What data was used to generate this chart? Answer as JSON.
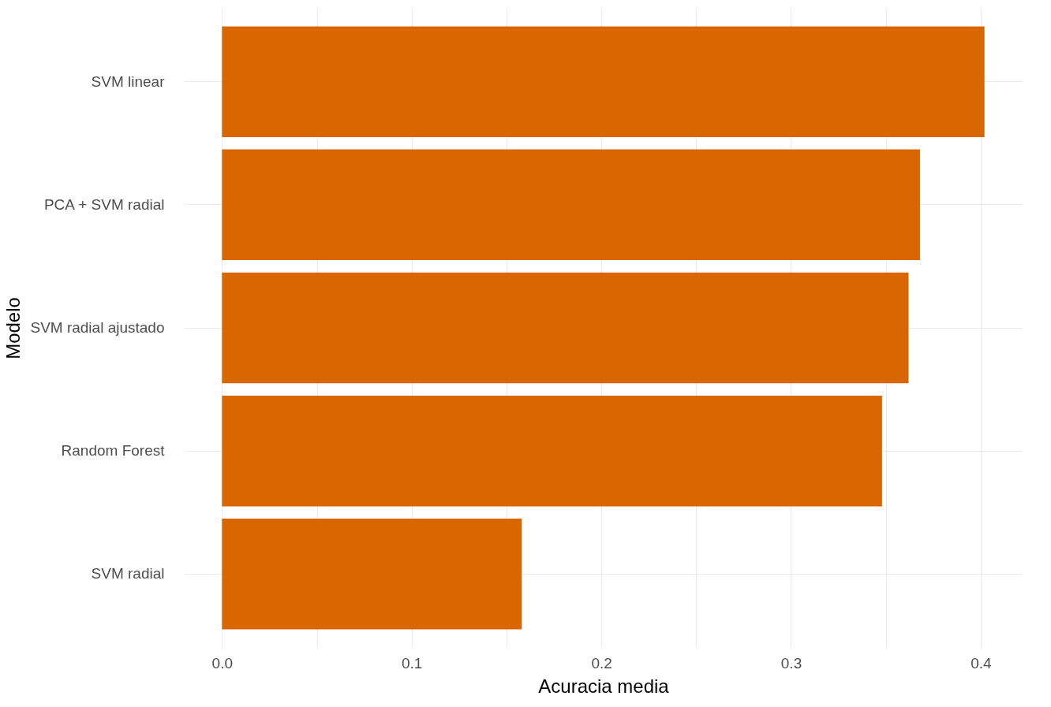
{
  "chart_data": {
    "type": "bar",
    "orientation": "horizontal",
    "xlabel": "Acuracia media",
    "ylabel": "Modelo",
    "categories": [
      "SVM linear",
      "PCA + SVM radial",
      "SVM radial ajustado",
      "Random Forest",
      "SVM radial"
    ],
    "values": [
      0.402,
      0.368,
      0.362,
      0.348,
      0.158
    ],
    "color": "#d96600",
    "xlim": [
      -0.0201,
      0.4221
    ],
    "xticks": [
      {
        "value": 0,
        "label": "0.0"
      },
      {
        "value": 0.05,
        "label": null
      },
      0.1,
      {
        "value": 0.15,
        "label": null
      },
      0.2,
      {
        "value": 0.25,
        "label": null
      },
      0.3,
      {
        "value": 0.35,
        "label": null
      },
      0.4
    ],
    "grid": true
  }
}
